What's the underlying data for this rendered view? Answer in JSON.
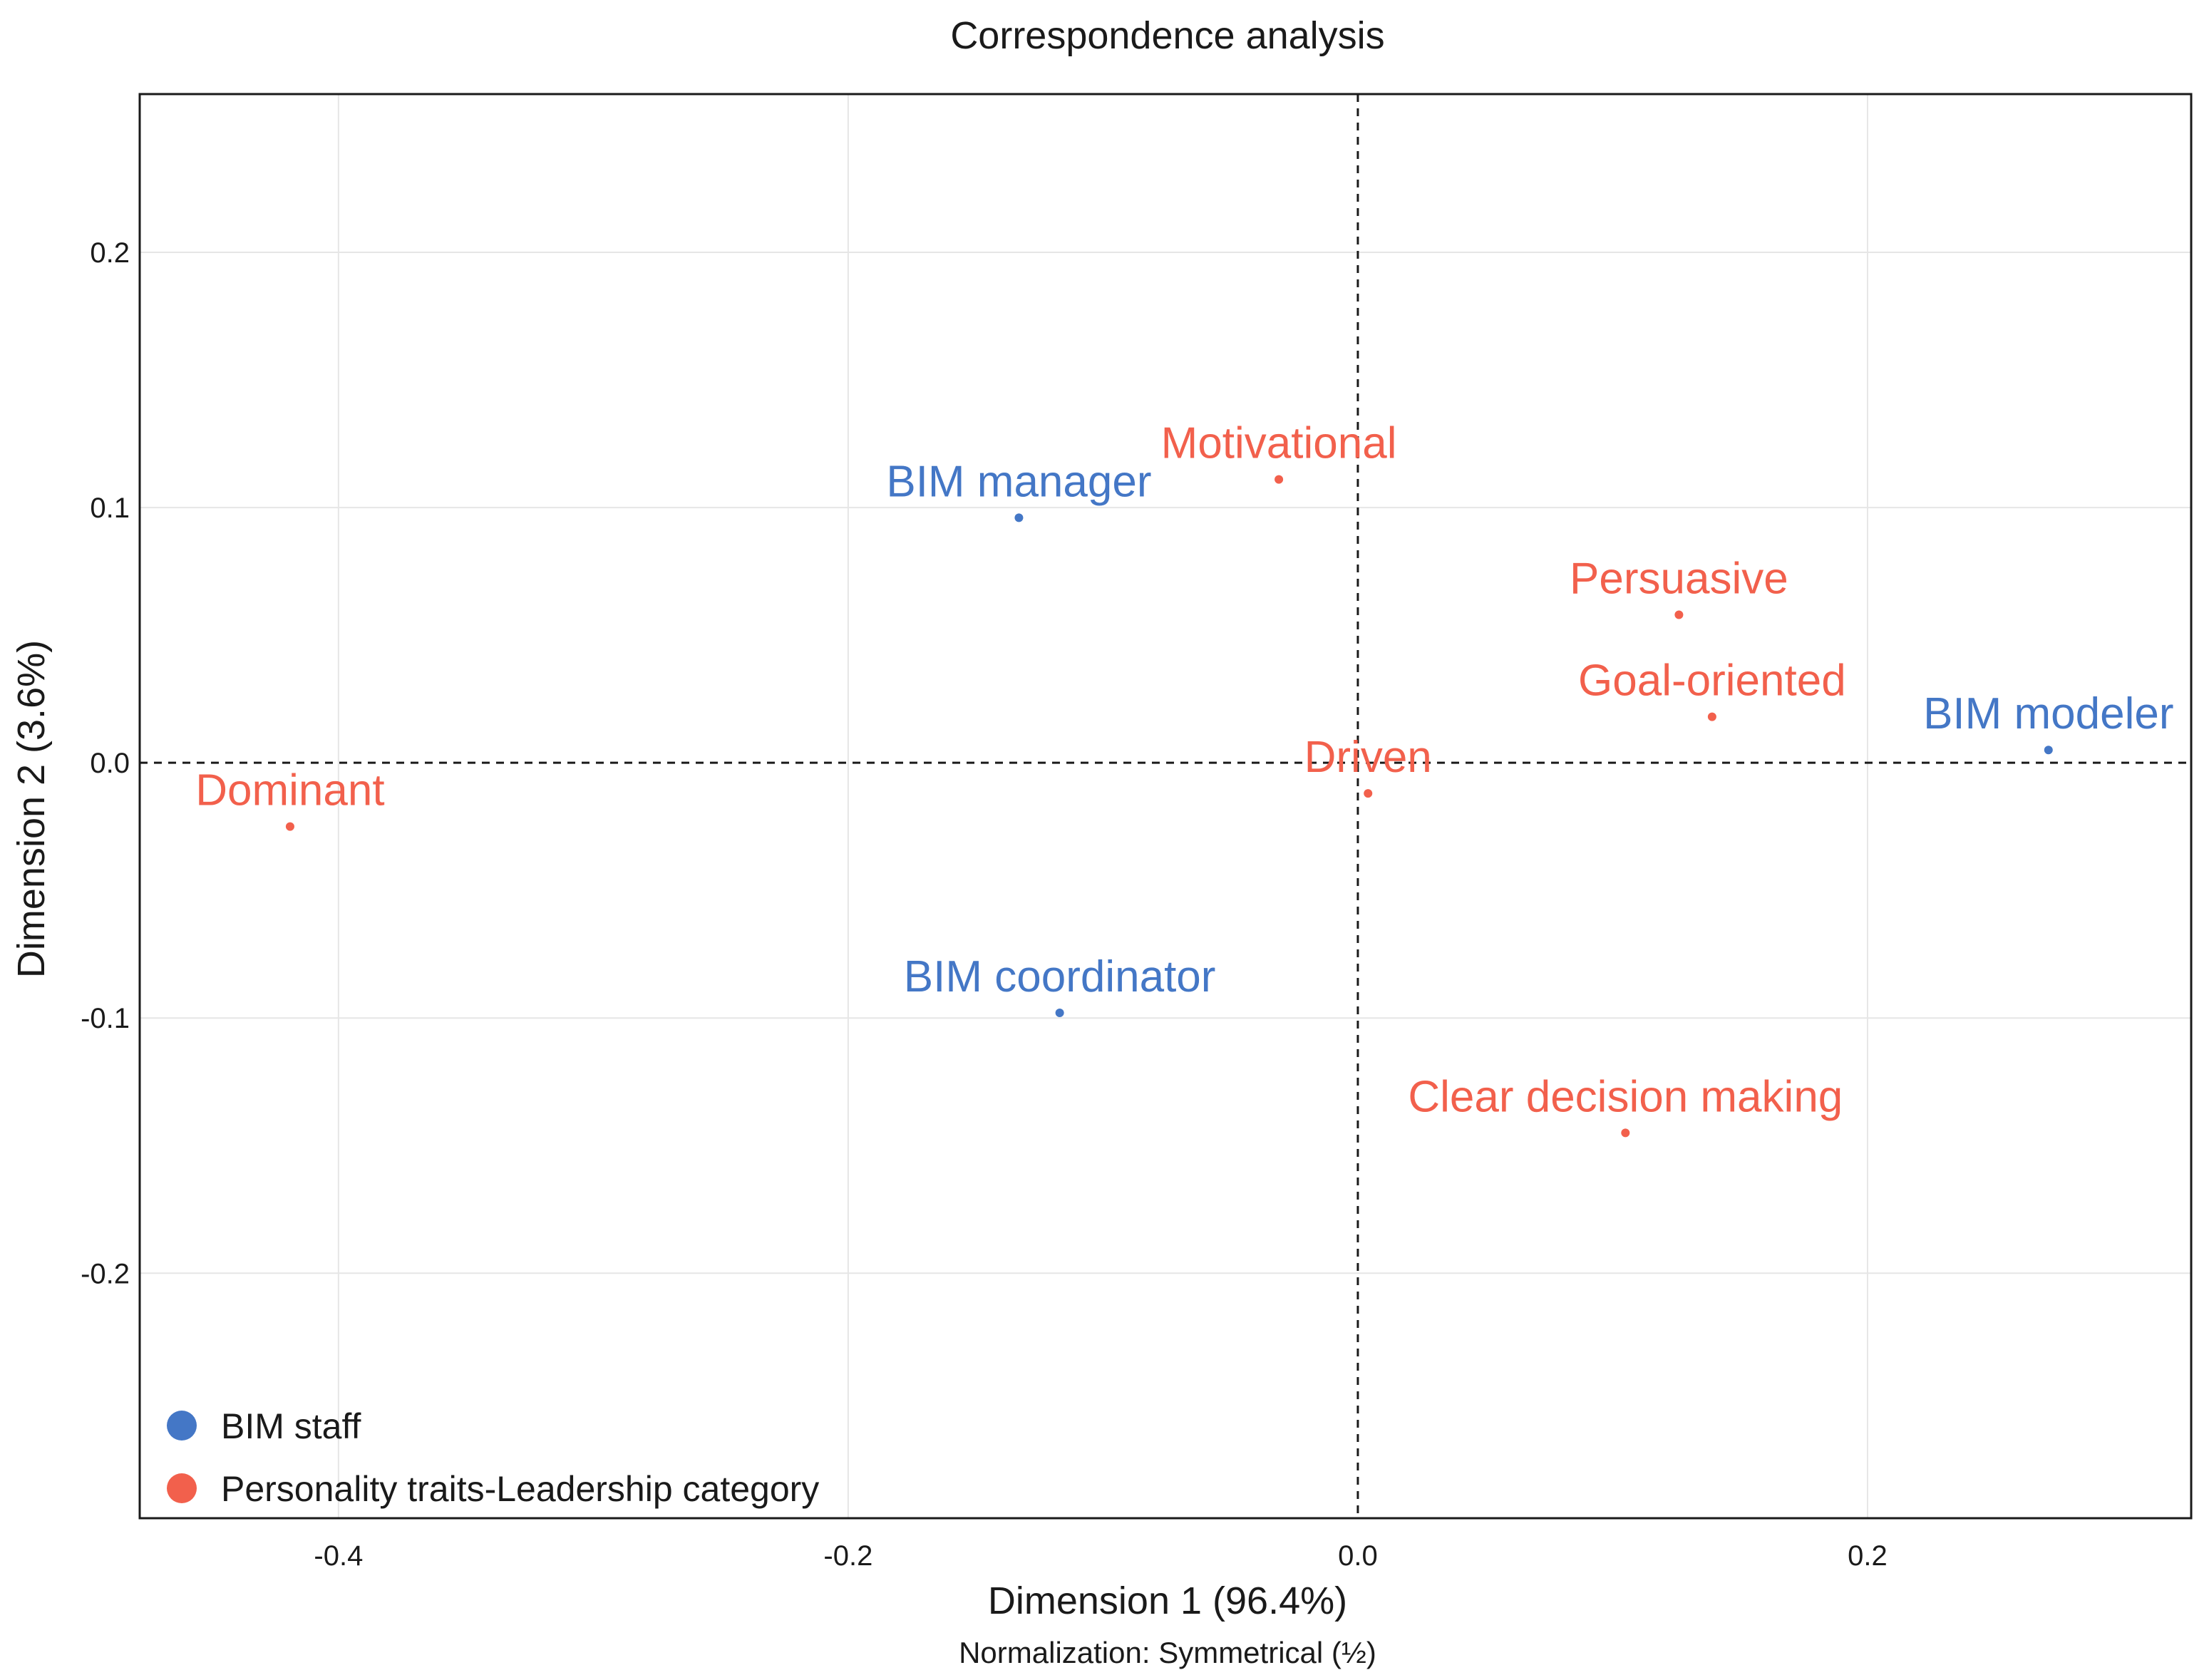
{
  "chart_data": {
    "type": "scatter",
    "title": "Correspondence analysis",
    "xlabel": "Dimension 1 (96.4%)",
    "ylabel": "Dimension 2 (3.6%)",
    "subtitle": "Normalization: Symmetrical (½)",
    "xlim": [
      -0.478,
      0.327
    ],
    "ylim": [
      -0.296,
      0.262
    ],
    "xticks": [
      -0.4,
      -0.2,
      0.0,
      0.2
    ],
    "xtick_labels": [
      "-0.4",
      "-0.2",
      "0.0",
      "0.2"
    ],
    "yticks": [
      -0.2,
      -0.1,
      0.0,
      0.1,
      0.2
    ],
    "ytick_labels": [
      "-0.2",
      "-0.1",
      "0.0",
      "0.1",
      "0.2"
    ],
    "grid": true,
    "reference_lines": {
      "x": 0.0,
      "y": 0.0,
      "style": "dashed"
    },
    "legend_position": "bottom-left",
    "series": [
      {
        "name": "BIM staff",
        "color": "#4477c6",
        "points": [
          {
            "label": "BIM manager",
            "x": -0.133,
            "y": 0.096
          },
          {
            "label": "BIM coordinator",
            "x": -0.117,
            "y": -0.098
          },
          {
            "label": "BIM modeler",
            "x": 0.271,
            "y": 0.005
          }
        ]
      },
      {
        "name": "Personality traits-Leadership category",
        "color": "#f2604c",
        "points": [
          {
            "label": "Motivational",
            "x": -0.031,
            "y": 0.111
          },
          {
            "label": "Persuasive",
            "x": 0.126,
            "y": 0.058
          },
          {
            "label": "Goal-oriented",
            "x": 0.139,
            "y": 0.018
          },
          {
            "label": "Driven",
            "x": 0.004,
            "y": -0.012
          },
          {
            "label": "Dominant",
            "x": -0.419,
            "y": -0.025
          },
          {
            "label": "Clear decision making",
            "x": 0.105,
            "y": -0.145
          }
        ]
      }
    ]
  }
}
